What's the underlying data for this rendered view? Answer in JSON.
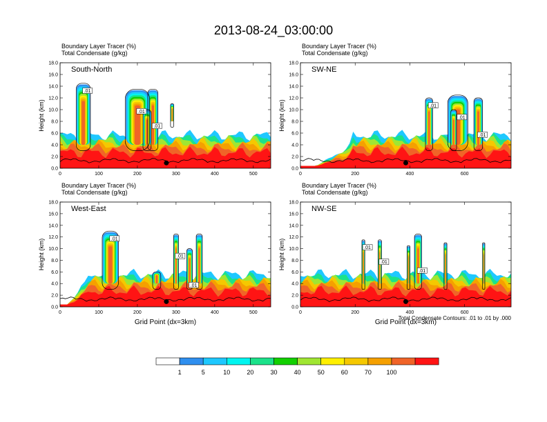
{
  "title": "2013-08-24_03:00:00",
  "note": "Total Condensate Contours: .01 to .01 by .000",
  "colorbar": {
    "labels": [
      "1",
      "5",
      "10",
      "20",
      "30",
      "40",
      "50",
      "60",
      "70",
      "100"
    ],
    "colors": [
      "#ffffff",
      "#2f8fef",
      "#1ec8ff",
      "#00f5f0",
      "#1be28a",
      "#12d000",
      "#a0e632",
      "#fff000",
      "#f5c800",
      "#f5a000",
      "#f06428",
      "#ff1414"
    ]
  },
  "chart_data": [
    {
      "type": "heatmap",
      "panel": "South-North",
      "subtitle": [
        "Boundary Layer Tracer   (%)",
        "Total Condensate   (g/kg)"
      ],
      "xlabel": "",
      "ylabel": "Height (km)",
      "xlim": [
        0,
        545
      ],
      "ylim": [
        0,
        18
      ],
      "xticks": [
        "0",
        "100",
        "200",
        "300",
        "400",
        "500"
      ],
      "yticks": [
        "0.0",
        "2.0",
        "4.0",
        "6.0",
        "8.0",
        "10.0",
        "12.0",
        "14.0",
        "16.0",
        "18.0"
      ],
      "contour_labels": [
        ".01",
        ".01",
        ".01"
      ],
      "marker_x": 275
    },
    {
      "type": "heatmap",
      "panel": "SW-NE",
      "subtitle": [
        "Boundary Layer Tracer   (%)",
        "Total Condensate   (g/kg)"
      ],
      "xlabel": "",
      "ylabel": "Height (km)",
      "xlim": [
        0,
        770
      ],
      "ylim": [
        0,
        18
      ],
      "xticks": [
        "0",
        "200",
        "400",
        "600"
      ],
      "yticks": [
        "0.0",
        "2.0",
        "4.0",
        "6.0",
        "8.0",
        "10.0",
        "12.0",
        "14.0",
        "16.0",
        "18.0"
      ],
      "contour_labels": [
        ".01",
        ".01",
        ".01"
      ],
      "marker_x": 385
    },
    {
      "type": "heatmap",
      "panel": "West-East",
      "subtitle": [
        "Boundary Layer Tracer   (%)",
        "Total Condensate   (g/kg)"
      ],
      "xlabel": "Grid Point (dx=3km)",
      "ylabel": "Height (km)",
      "xlim": [
        0,
        545
      ],
      "ylim": [
        0,
        18
      ],
      "xticks": [
        "0",
        "100",
        "200",
        "300",
        "400",
        "500"
      ],
      "yticks": [
        "0.0",
        "2.0",
        "4.0",
        "6.0",
        "8.0",
        "10.0",
        "12.0",
        "14.0",
        "16.0",
        "18.0"
      ],
      "contour_labels": [
        ".01",
        ".01",
        ".01"
      ],
      "marker_x": 275
    },
    {
      "type": "heatmap",
      "panel": "NW-SE",
      "subtitle": [
        "Boundary Layer Tracer   (%)",
        "Total Condensate   (g/kg)"
      ],
      "xlabel": "Grid Point (dx=3km)",
      "ylabel": "Height (km)",
      "xlim": [
        0,
        770
      ],
      "ylim": [
        0,
        18
      ],
      "xticks": [
        "0",
        "200",
        "400",
        "600"
      ],
      "yticks": [
        "0.0",
        "2.0",
        "4.0",
        "6.0",
        "8.0",
        "10.0",
        "12.0",
        "14.0",
        "16.0",
        "18.0"
      ],
      "contour_labels": [
        ".01",
        ".01",
        ".01"
      ],
      "marker_x": 385
    }
  ]
}
